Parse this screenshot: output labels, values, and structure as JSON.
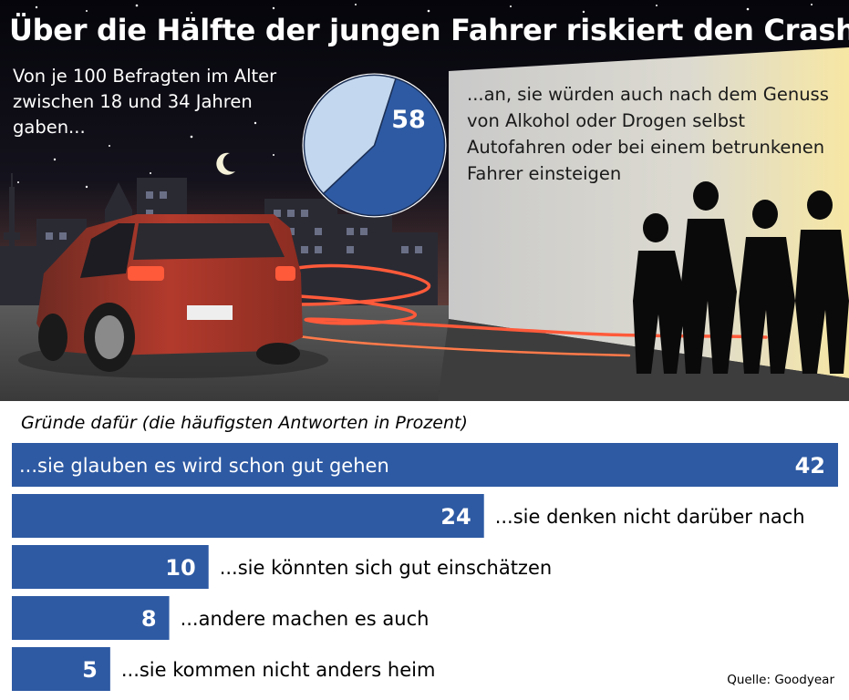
{
  "title": "Über die Hälfte der jungen Fahrer riskiert den Crash",
  "intro": "Von je 100 Befragten im Alter zwischen 18 und 34 Jahren gaben...",
  "statement": "...an, sie würden auch nach dem Genuss von Alkohol oder Drogen selbst Autofahren oder bei einem betrunkenen Fahrer einsteigen",
  "source": "Quelle: Goodyear",
  "colors": {
    "bar": "#2e5aa3",
    "pie_main": "#2e5aa3",
    "pie_rest": "#c3d7ee",
    "sky_top": "#07070d",
    "sky_bottom": "#8a5a48",
    "road": "#4a4a4a",
    "car": "#a8362a",
    "light_trail": "#ff4a2a"
  },
  "chart_data": [
    {
      "type": "pie",
      "values": [
        58,
        42
      ],
      "labels": [
        "58",
        ""
      ]
    },
    {
      "type": "bar",
      "orientation": "horizontal",
      "title": "Gründe dafür (die häufigsten Antworten in Prozent)",
      "categories": [
        "...sie glauben es wird schon gut gehen",
        "...sie denken nicht darüber nach",
        "...sie könnten sich gut einschätzen",
        "...andere machen es auch",
        "...sie kommen nicht anders heim"
      ],
      "values": [
        42,
        24,
        10,
        8,
        5
      ],
      "xlim": [
        0,
        42
      ]
    }
  ]
}
